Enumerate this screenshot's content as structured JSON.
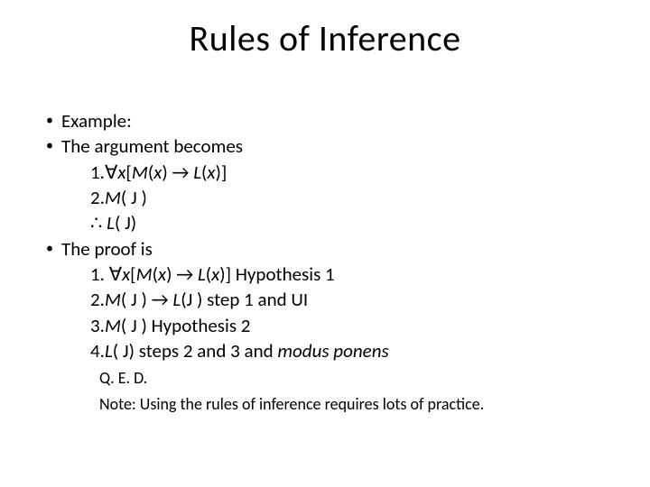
{
  "title": "Rules of Inference",
  "bullets": {
    "b1": "Example:",
    "b2": "The argument becomes",
    "b2_l1_a": "1.∀",
    "b2_l1_b": "x",
    "b2_l1_c": "[",
    "b2_l1_d": "M",
    "b2_l1_e": "(",
    "b2_l1_f": "x",
    "b2_l1_g": ") → ",
    "b2_l1_h": "L",
    "b2_l1_i": "(",
    "b2_l1_j": "x",
    "b2_l1_k": ")]",
    "b2_l2_a": "2.",
    "b2_l2_b": "M",
    "b2_l2_c": "( J )",
    "b2_l3_a": "∴ ",
    "b2_l3_b": "L",
    "b2_l3_c": "( J)",
    "b3": "The proof is",
    "b3_l1_a": "1. ∀",
    "b3_l1_b": "x",
    "b3_l1_c": "[",
    "b3_l1_d": "M",
    "b3_l1_e": "(",
    "b3_l1_f": "x",
    "b3_l1_g": ") → ",
    "b3_l1_h": "L",
    "b3_l1_i": "(",
    "b3_l1_j": "x",
    "b3_l1_k": ")] Hypothesis 1",
    "b3_l2_a": "2.",
    "b3_l2_b": "M",
    "b3_l2_c": "( J ) → ",
    "b3_l2_d": "L",
    "b3_l2_e": "(J ) step 1 and UI",
    "b3_l3_a": "3.",
    "b3_l3_b": "M",
    "b3_l3_c": "( J ) Hypothesis 2",
    "b3_l4_a": "4.",
    "b3_l4_b": "L",
    "b3_l4_c": "( J) steps 2 and 3 and ",
    "b3_l4_d": "modus ponens"
  },
  "notes": {
    "n1": "Q. E. D.",
    "n2": "Note: Using the rules of inference requires lots of practice."
  },
  "colors": {
    "background": "#ffffff",
    "text": "#000000"
  },
  "fonts": {
    "title_size_pt": 40,
    "body_size_pt": 21,
    "note_size_pt": 18,
    "family": "Calibri"
  }
}
